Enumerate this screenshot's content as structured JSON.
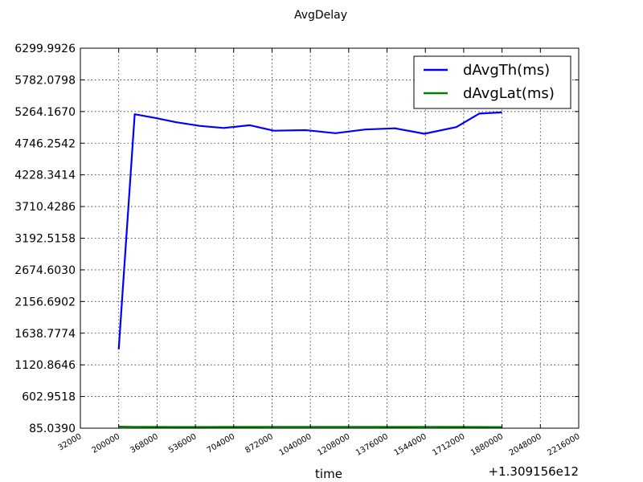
{
  "chart_data": {
    "type": "line",
    "title": "AvgDelay",
    "xlabel": "time",
    "ylabel": "",
    "x_offset_label": "+1.309156e12",
    "xlim": [
      32000,
      2216000
    ],
    "ylim": [
      85.039,
      6299.9926
    ],
    "x_ticks": [
      "32000",
      "200000",
      "368000",
      "536000",
      "704000",
      "872000",
      "1040000",
      "1208000",
      "1376000",
      "1544000",
      "1712000",
      "1880000",
      "2048000",
      "2216000"
    ],
    "y_ticks": [
      "85.0390",
      "602.9518",
      "1120.8646",
      "1638.7774",
      "2156.6902",
      "2674.6030",
      "3192.5158",
      "3710.4286",
      "4228.3414",
      "4746.2542",
      "5264.1670",
      "5782.0798",
      "6299.9926"
    ],
    "grid": true,
    "legend_position": "top-right",
    "x": [
      200000,
      270000,
      360000,
      450000,
      555000,
      660000,
      775000,
      880000,
      1020000,
      1150000,
      1280000,
      1410000,
      1540000,
      1680000,
      1780000,
      1880000
    ],
    "series": [
      {
        "name": "dAvgTh(ms)",
        "color": "#0000ff",
        "values": [
          1375,
          5220,
          5160,
          5090,
          5030,
          4995,
          5040,
          4950,
          4960,
          4910,
          4970,
          4990,
          4900,
          5010,
          5230,
          5250
        ]
      },
      {
        "name": "dAvgLat(ms)",
        "color": "#008000",
        "values": [
          110,
          108,
          106,
          105,
          105,
          106,
          106,
          107,
          108,
          108,
          107,
          106,
          107,
          106,
          105,
          104
        ]
      }
    ]
  }
}
